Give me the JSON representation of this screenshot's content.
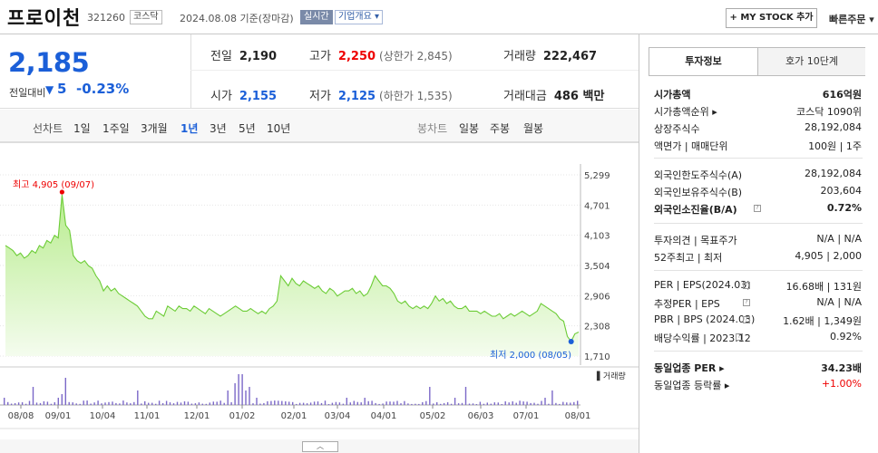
{
  "header": {
    "stock_name": "프로이천",
    "stock_code": "321260",
    "market_badge": "코스닥",
    "date_text": "2024.08.08  기준(장마감)",
    "realtime_badge": "실시간",
    "overview_btn": "기업개요 ▾",
    "mystock_btn": "+ MY STOCK 추가",
    "quick_order_btn": "빠른주문 ▾"
  },
  "price": {
    "current": "2,185",
    "compare_label": "전일대비",
    "compare_arrow": "▼",
    "compare_value": "5",
    "compare_pct": "-0.23%",
    "prev_close_label": "전일",
    "prev_close": "2,190",
    "high_label": "고가",
    "high": "2,250",
    "upper_limit": "(상한가 2,845)",
    "volume_label": "거래량",
    "volume": "222,467",
    "open_label": "시가",
    "open": "2,155",
    "low_label": "저가",
    "low": "2,125",
    "lower_limit": "(하한가 1,535)",
    "amount_label": "거래대금",
    "amount": "486 백만"
  },
  "period_tabs": {
    "line_label": "선차트",
    "line_items": [
      "1일",
      "1주일",
      "3개월",
      "1년",
      "3년",
      "5년",
      "10년"
    ],
    "active": "1년",
    "candle_label": "봉차트",
    "candle_items": [
      "일봉",
      "주봉",
      "월봉"
    ]
  },
  "chart": {
    "high_annotation": "최고 4,905 (09/07)",
    "low_annotation": "최저 2,000 (08/05)",
    "volume_legend": "▌거래량",
    "collapse_btn": "︿"
  },
  "chart_data": {
    "type": "area",
    "title": "",
    "y_ticks": [
      "5,299",
      "4,701",
      "4,103",
      "3,504",
      "2,906",
      "2,308",
      "1,710"
    ],
    "ylim": [
      1710,
      5299
    ],
    "x_ticks": [
      "08/08",
      "09/01",
      "10/04",
      "11/01",
      "12/01",
      "01/02",
      "02/01",
      "03/04",
      "04/01",
      "05/02",
      "06/03",
      "07/01",
      "08/01"
    ],
    "series": [
      {
        "values": [
          3900,
          3850,
          3800,
          3700,
          3750,
          3650,
          3700,
          3800,
          3750,
          3900,
          3850,
          4000,
          3950,
          4100,
          4050,
          4905,
          4300,
          4200,
          3700,
          3600,
          3550,
          3600,
          3500,
          3450,
          3300,
          3200,
          3000,
          3100,
          3000,
          3050,
          2950,
          2900,
          2850,
          2800,
          2750,
          2700,
          2600,
          2500,
          2450,
          2450,
          2600,
          2550,
          2500,
          2700,
          2650,
          2600,
          2700,
          2650,
          2650,
          2600,
          2700,
          2650,
          2600,
          2550,
          2650,
          2600,
          2550,
          2500,
          2550,
          2600,
          2650,
          2700,
          2650,
          2600,
          2600,
          2650,
          2600,
          2550,
          2600,
          2550,
          2650,
          2700,
          2800,
          3300,
          3200,
          3100,
          3250,
          3150,
          3100,
          3200,
          3150,
          3100,
          3050,
          3100,
          3000,
          2950,
          3050,
          3000,
          2900,
          2950,
          3000,
          3000,
          3050,
          2950,
          3000,
          2900,
          2950,
          3100,
          3300,
          3200,
          3100,
          3100,
          3050,
          2950,
          2800,
          2750,
          2800,
          2700,
          2650,
          2700,
          2650,
          2700,
          2650,
          2750,
          2900,
          2800,
          2850,
          2750,
          2800,
          2700,
          2650,
          2650,
          2700,
          2600,
          2600,
          2600,
          2550,
          2600,
          2550,
          2500,
          2500,
          2550,
          2450,
          2500,
          2550,
          2500,
          2550,
          2600,
          2550,
          2500,
          2550,
          2600,
          2750,
          2700,
          2650,
          2600,
          2550,
          2450,
          2400,
          2100,
          2000,
          2150,
          2185
        ]
      }
    ]
  },
  "right_panel": {
    "tab_invest": "투자정보",
    "tab_hoga": "호가 10단계",
    "rows": [
      {
        "k": "시가총액",
        "v": "616억원",
        "bold": true
      },
      {
        "k": "시가총액순위 ▸",
        "v": "코스닥 1090위"
      },
      {
        "k": "상장주식수",
        "v": "28,192,084"
      },
      {
        "k": "액면가 | 매매단위",
        "v": "100원 | 1주"
      },
      {
        "k": "외국인한도주식수(A)",
        "v": "28,192,084"
      },
      {
        "k": "외국인보유주식수(B)",
        "v": "203,604"
      },
      {
        "k": "외국인소진율(B/A)",
        "v": "0.72%",
        "bold": true
      },
      {
        "k": "투자의견 | 목표주가",
        "v": "N/A | N/A"
      },
      {
        "k": "52주최고 | 최저",
        "v": "4,905 | 2,000"
      },
      {
        "k": "PER | EPS(2024.03)",
        "v": "16.68배 | 131원"
      },
      {
        "k": "추정PER | EPS",
        "v": "N/A | N/A"
      },
      {
        "k": "PBR | BPS (2024.03)",
        "v": "1.62배 | 1,349원"
      },
      {
        "k": "배당수익률 | 2023.12",
        "v": "0.92%"
      },
      {
        "k": "동일업종 PER ▸",
        "v": "34.23배",
        "bold": true
      },
      {
        "k": "동일업종 등락률 ▸",
        "v": "+1.00%",
        "red": true
      }
    ]
  }
}
